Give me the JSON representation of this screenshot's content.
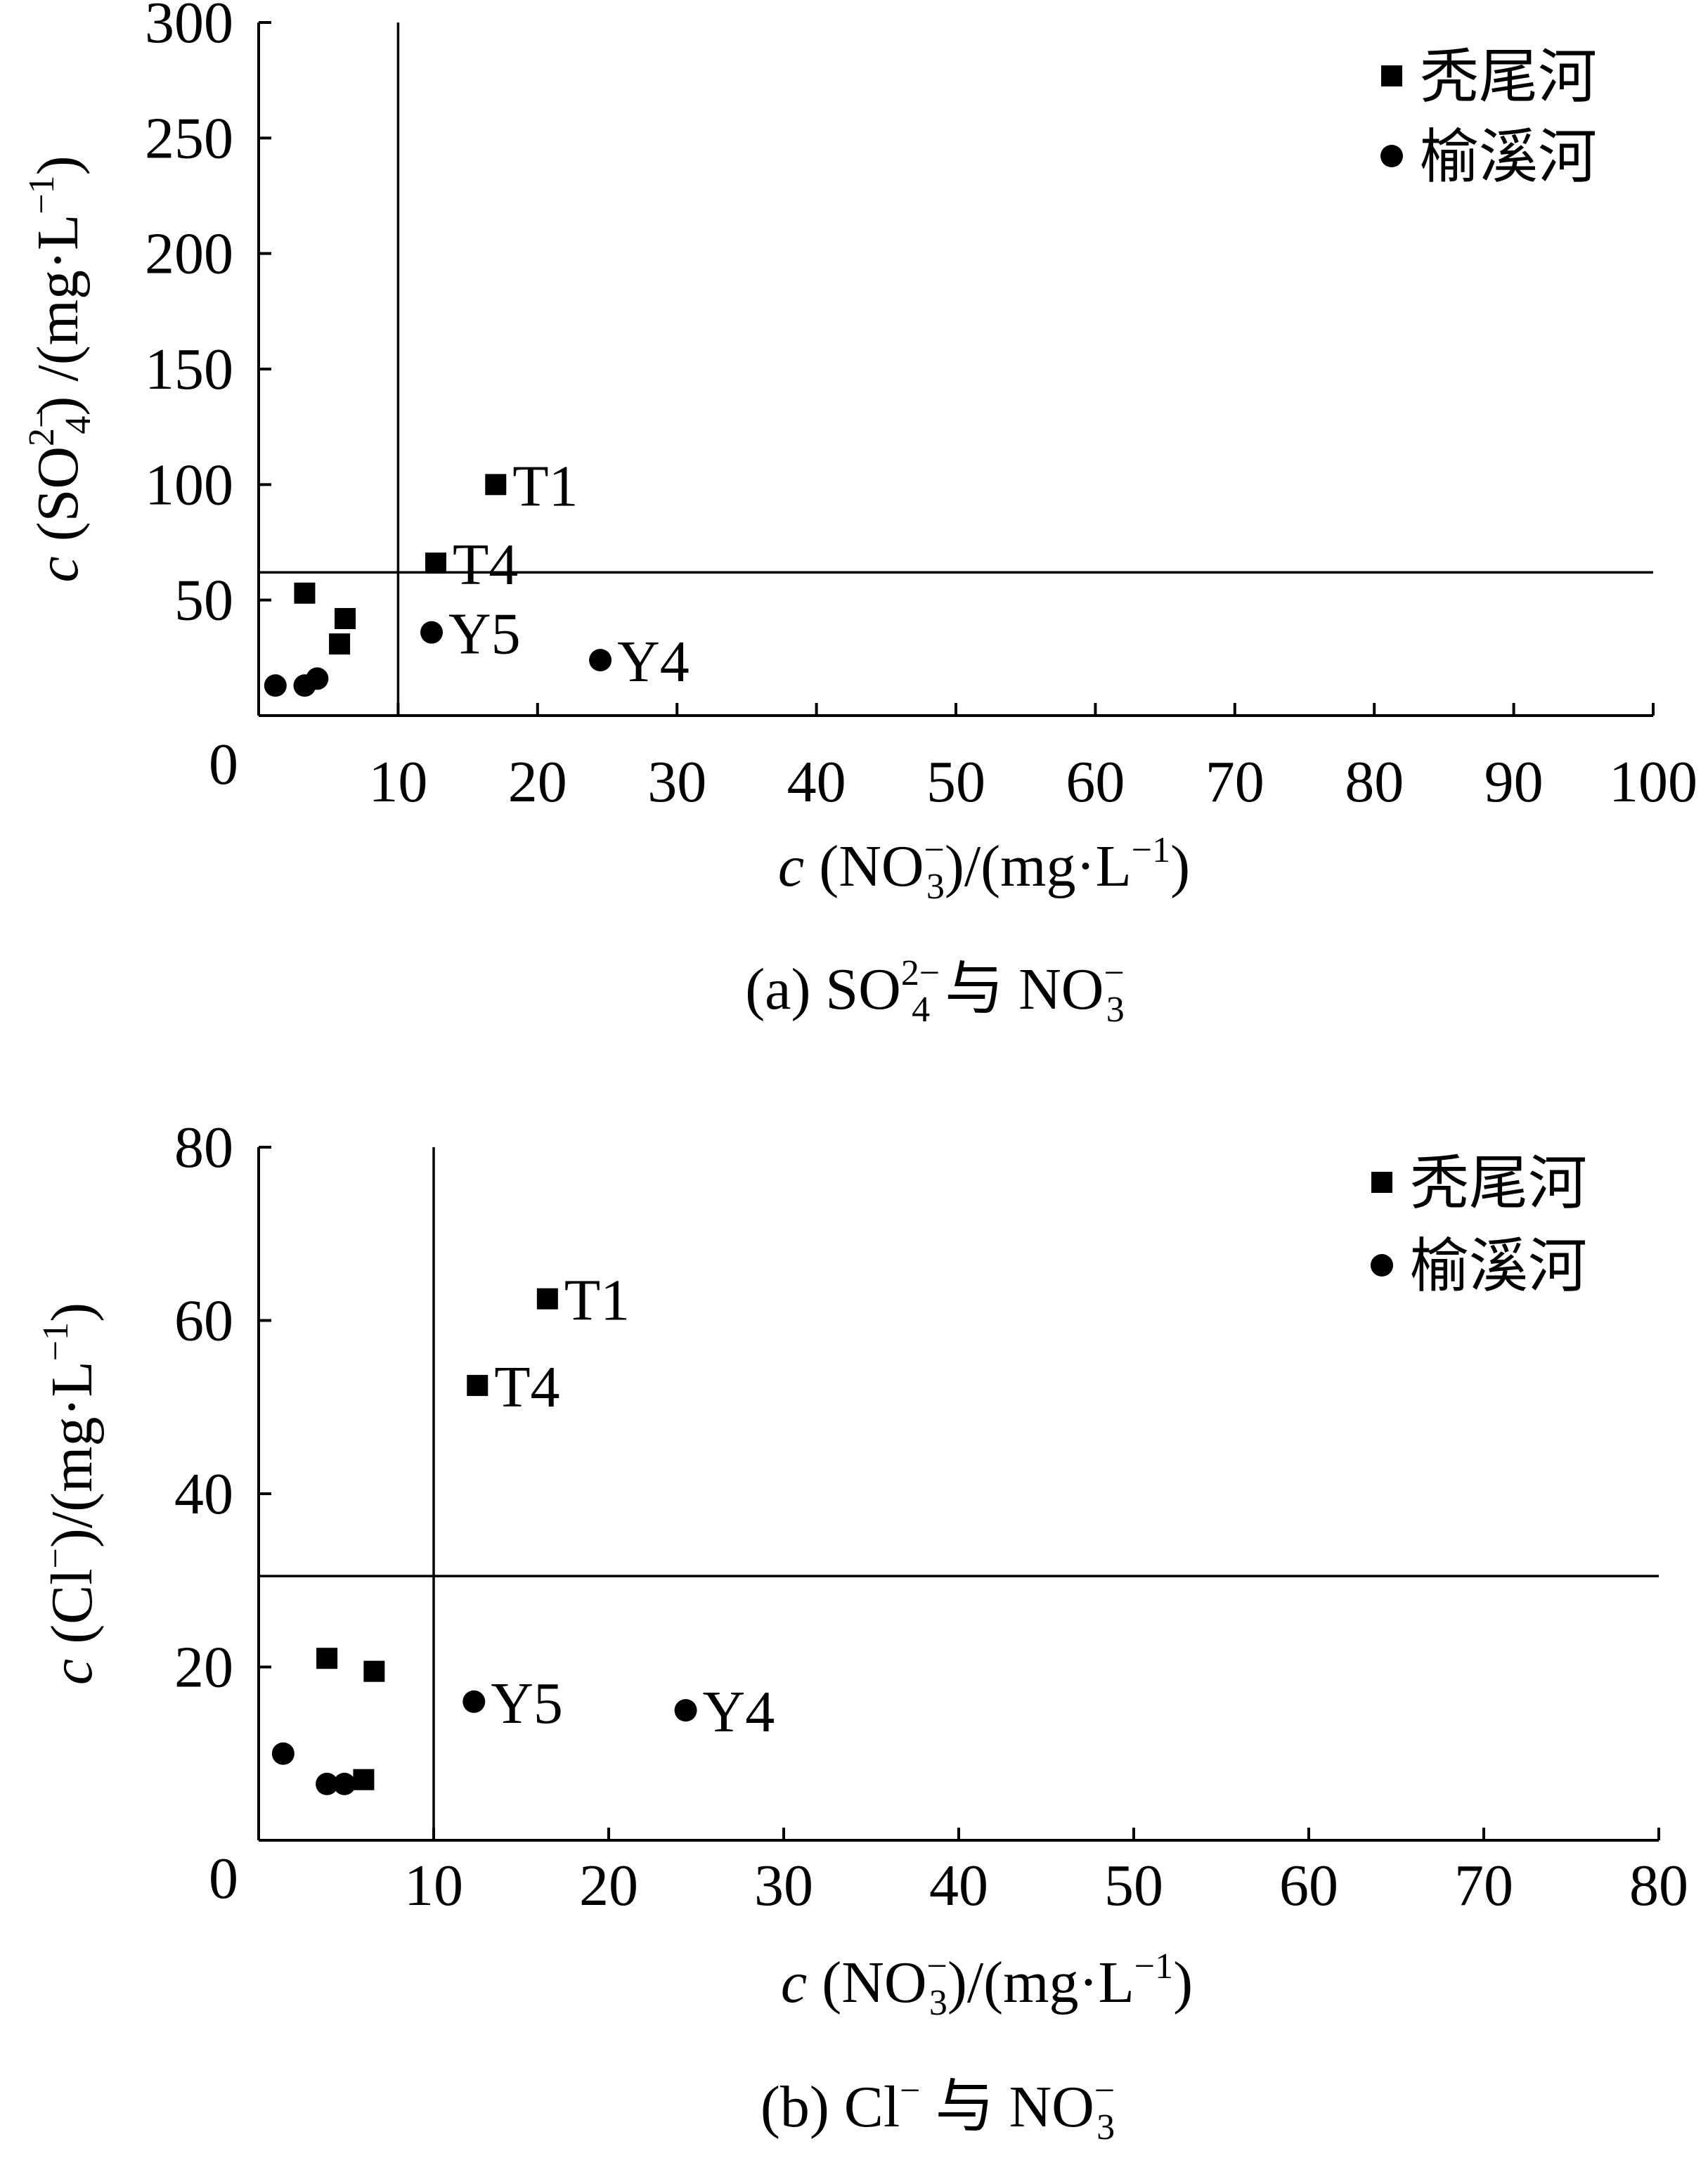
{
  "chart_data": [
    {
      "type": "scatter",
      "panel": "a",
      "caption": {
        "pre": "(a) SO",
        "sub": "4",
        "sup": "2−",
        "mid": " 与 NO",
        "sub2": "3",
        "sup2": "−"
      },
      "xlabel": {
        "c": "c",
        "pre": " (NO",
        "sub": "3",
        "sup": "−",
        "post": ")/(mg·L",
        "exp": "−1",
        "end": ")"
      },
      "ylabel": {
        "c": "c",
        "pre": " (SO",
        "sub": "4",
        "sup": "2−",
        "post": ") /(mg·L",
        "exp": "−1",
        "end": ")"
      },
      "xlim": [
        0,
        100
      ],
      "ylim": [
        0,
        300
      ],
      "xticks": [
        10,
        20,
        30,
        40,
        50,
        60,
        70,
        80,
        90,
        100
      ],
      "yticks": [
        50,
        100,
        150,
        200,
        250,
        300
      ],
      "origin_label": "0",
      "ref_lines": {
        "x": 10,
        "y": 62
      },
      "legend": {
        "position": "top-right",
        "entries": [
          {
            "marker": "square",
            "label": "秃尾河"
          },
          {
            "marker": "circle",
            "label": "榆溪河"
          }
        ]
      },
      "series": [
        {
          "name": "秃尾河",
          "marker": "square",
          "points": [
            {
              "x": 17,
              "y": 100,
              "label": "T1"
            },
            {
              "x": 12.7,
              "y": 66,
              "label": "T4"
            },
            {
              "x": 3.3,
              "y": 53
            },
            {
              "x": 6.2,
              "y": 42
            },
            {
              "x": 5.8,
              "y": 31
            }
          ]
        },
        {
          "name": "榆溪河",
          "marker": "circle",
          "points": [
            {
              "x": 12.4,
              "y": 36,
              "label": "Y5"
            },
            {
              "x": 24.5,
              "y": 24,
              "label": "Y4"
            },
            {
              "x": 1.2,
              "y": 13
            },
            {
              "x": 3.3,
              "y": 13
            },
            {
              "x": 4.2,
              "y": 16
            }
          ]
        }
      ]
    },
    {
      "type": "scatter",
      "panel": "b",
      "caption": {
        "pre": "(b) Cl",
        "sub": "",
        "sup": "−",
        "mid": " 与 NO",
        "sub2": "3",
        "sup2": "−"
      },
      "xlabel": {
        "c": "c",
        "pre": " (NO",
        "sub": "3",
        "sup": "−",
        "post": ")/(mg·L",
        "exp": "−1",
        "end": ")"
      },
      "ylabel": {
        "c": "c",
        "pre": " (Cl",
        "sub": "",
        "sup": "−",
        "post": ")/(mg·L",
        "exp": "−1",
        "end": ")"
      },
      "xlim": [
        0,
        80
      ],
      "ylim": [
        0,
        80
      ],
      "xticks": [
        10,
        20,
        30,
        40,
        50,
        60,
        70,
        80
      ],
      "yticks": [
        20,
        40,
        60,
        80
      ],
      "origin_label": "0",
      "ref_lines": {
        "x": 10,
        "y": 30.5
      },
      "legend": {
        "position": "top-right",
        "entries": [
          {
            "marker": "square",
            "label": "秃尾河"
          },
          {
            "marker": "circle",
            "label": "榆溪河"
          }
        ]
      },
      "series": [
        {
          "name": "秃尾河",
          "marker": "square",
          "points": [
            {
              "x": 16.5,
              "y": 62.5,
              "label": "T1"
            },
            {
              "x": 12.5,
              "y": 52.5,
              "label": "T4"
            },
            {
              "x": 3.9,
              "y": 21
            },
            {
              "x": 6.6,
              "y": 19.5
            },
            {
              "x": 6.0,
              "y": 7
            }
          ]
        },
        {
          "name": "榆溪河",
          "marker": "circle",
          "points": [
            {
              "x": 12.3,
              "y": 16,
              "label": "Y5"
            },
            {
              "x": 24.4,
              "y": 15,
              "label": "Y4"
            },
            {
              "x": 1.4,
              "y": 10
            },
            {
              "x": 3.9,
              "y": 6.5
            },
            {
              "x": 4.9,
              "y": 6.5
            }
          ]
        }
      ]
    }
  ]
}
